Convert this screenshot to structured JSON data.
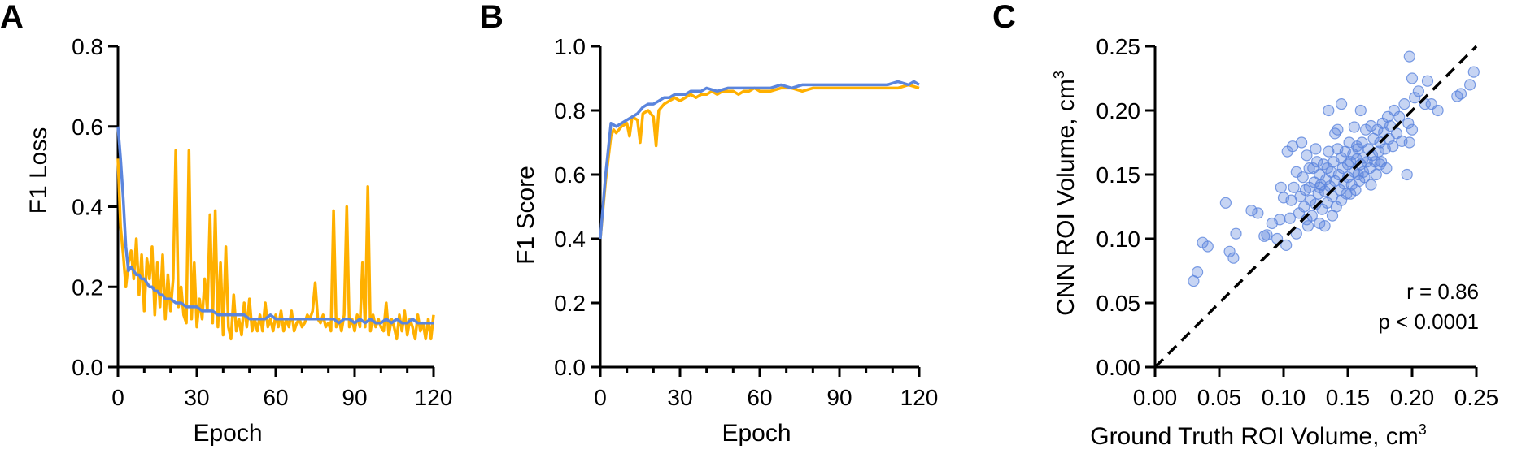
{
  "colors": {
    "validation": "#FFB000",
    "training": "#5B85DD",
    "identity_line": "#000000",
    "scatter_fill": "#5B85DD"
  },
  "chart_data": [
    {
      "panel": "A",
      "type": "line",
      "xlabel": "Epoch",
      "ylabel": "F1 Loss",
      "xlim": [
        0,
        120
      ],
      "ylim": [
        0,
        0.8
      ],
      "xticks": [
        "0",
        "30",
        "60",
        "90",
        "120"
      ],
      "yticks": [
        "0.0",
        "0.2",
        "0.4",
        "0.6",
        "0.8"
      ],
      "grid": false,
      "series": [
        {
          "color": "#FFB000",
          "x": [
            0,
            1,
            2,
            3,
            4,
            5,
            6,
            7,
            8,
            9,
            10,
            11,
            12,
            13,
            14,
            15,
            16,
            17,
            18,
            19,
            20,
            21,
            22,
            23,
            24,
            25,
            26,
            27,
            28,
            29,
            30,
            31,
            32,
            33,
            34,
            35,
            36,
            37,
            38,
            39,
            40,
            41,
            42,
            43,
            44,
            45,
            46,
            47,
            48,
            49,
            50,
            51,
            52,
            53,
            54,
            55,
            56,
            57,
            58,
            59,
            60,
            61,
            62,
            63,
            64,
            65,
            66,
            67,
            68,
            69,
            70,
            71,
            72,
            73,
            74,
            75,
            76,
            77,
            78,
            79,
            80,
            81,
            82,
            83,
            84,
            85,
            86,
            87,
            88,
            89,
            90,
            91,
            92,
            93,
            94,
            95,
            96,
            97,
            98,
            99,
            100,
            101,
            102,
            103,
            104,
            105,
            106,
            107,
            108,
            109,
            110,
            111,
            112,
            113,
            114,
            115,
            116,
            117,
            118,
            119,
            120
          ],
          "values": [
            0.52,
            0.35,
            0.28,
            0.2,
            0.26,
            0.29,
            0.22,
            0.32,
            0.18,
            0.28,
            0.14,
            0.27,
            0.22,
            0.3,
            0.13,
            0.26,
            0.15,
            0.28,
            0.12,
            0.23,
            0.14,
            0.22,
            0.54,
            0.15,
            0.2,
            0.13,
            0.11,
            0.54,
            0.12,
            0.26,
            0.1,
            0.17,
            0.12,
            0.22,
            0.14,
            0.38,
            0.11,
            0.39,
            0.1,
            0.26,
            0.08,
            0.3,
            0.1,
            0.07,
            0.18,
            0.09,
            0.12,
            0.08,
            0.16,
            0.1,
            0.17,
            0.09,
            0.12,
            0.09,
            0.13,
            0.09,
            0.16,
            0.1,
            0.12,
            0.09,
            0.13,
            0.1,
            0.14,
            0.09,
            0.12,
            0.1,
            0.14,
            0.09,
            0.11,
            0.12,
            0.1,
            0.11,
            0.13,
            0.12,
            0.14,
            0.21,
            0.12,
            0.11,
            0.13,
            0.1,
            0.11,
            0.09,
            0.39,
            0.1,
            0.12,
            0.09,
            0.13,
            0.4,
            0.1,
            0.12,
            0.09,
            0.13,
            0.1,
            0.26,
            0.1,
            0.45,
            0.09,
            0.13,
            0.1,
            0.12,
            0.1,
            0.09,
            0.16,
            0.08,
            0.12,
            0.1,
            0.07,
            0.13,
            0.09,
            0.14,
            0.08,
            0.12,
            0.1,
            0.07,
            0.13,
            0.09,
            0.11,
            0.07,
            0.12,
            0.07,
            0.13
          ]
        },
        {
          "color": "#5B85DD",
          "x": [
            0,
            1,
            2,
            3,
            4,
            5,
            6,
            7,
            8,
            9,
            10,
            11,
            12,
            13,
            14,
            15,
            16,
            17,
            18,
            19,
            20,
            22,
            24,
            26,
            28,
            30,
            32,
            34,
            36,
            38,
            40,
            42,
            44,
            46,
            48,
            50,
            52,
            54,
            56,
            58,
            60,
            62,
            64,
            66,
            68,
            70,
            72,
            74,
            76,
            78,
            80,
            82,
            84,
            86,
            88,
            90,
            92,
            94,
            96,
            98,
            100,
            102,
            104,
            106,
            108,
            110,
            112,
            114,
            116,
            118,
            120
          ],
          "values": [
            0.6,
            0.52,
            0.42,
            0.3,
            0.24,
            0.25,
            0.24,
            0.23,
            0.23,
            0.22,
            0.22,
            0.21,
            0.2,
            0.2,
            0.19,
            0.19,
            0.18,
            0.18,
            0.17,
            0.17,
            0.17,
            0.16,
            0.16,
            0.15,
            0.15,
            0.15,
            0.14,
            0.14,
            0.14,
            0.13,
            0.13,
            0.13,
            0.13,
            0.13,
            0.13,
            0.12,
            0.12,
            0.12,
            0.12,
            0.13,
            0.12,
            0.12,
            0.12,
            0.12,
            0.12,
            0.12,
            0.12,
            0.12,
            0.12,
            0.12,
            0.12,
            0.12,
            0.11,
            0.12,
            0.12,
            0.11,
            0.12,
            0.11,
            0.12,
            0.11,
            0.11,
            0.12,
            0.11,
            0.12,
            0.11,
            0.11,
            0.12,
            0.11,
            0.11,
            0.11,
            0.11
          ]
        }
      ]
    },
    {
      "panel": "B",
      "type": "line",
      "xlabel": "Epoch",
      "ylabel": "F1 Score",
      "xlim": [
        0,
        120
      ],
      "ylim": [
        0,
        1.0
      ],
      "xticks": [
        "0",
        "30",
        "60",
        "90",
        "120"
      ],
      "yticks": [
        "0.0",
        "0.2",
        "0.4",
        "0.6",
        "0.8",
        "1.0"
      ],
      "grid": false,
      "series": [
        {
          "color": "#FFB000",
          "x": [
            0,
            2,
            4,
            5,
            6,
            8,
            10,
            11,
            12,
            14,
            15,
            16,
            18,
            20,
            21,
            22,
            24,
            26,
            28,
            30,
            32,
            34,
            36,
            38,
            40,
            42,
            44,
            46,
            48,
            50,
            52,
            54,
            56,
            58,
            60,
            64,
            68,
            72,
            76,
            80,
            84,
            88,
            92,
            96,
            100,
            104,
            108,
            112,
            116,
            120
          ],
          "values": [
            0.4,
            0.58,
            0.72,
            0.74,
            0.73,
            0.75,
            0.76,
            0.72,
            0.78,
            0.77,
            0.7,
            0.79,
            0.8,
            0.78,
            0.69,
            0.8,
            0.82,
            0.83,
            0.84,
            0.83,
            0.84,
            0.85,
            0.84,
            0.85,
            0.85,
            0.86,
            0.85,
            0.86,
            0.86,
            0.86,
            0.85,
            0.86,
            0.86,
            0.87,
            0.86,
            0.86,
            0.87,
            0.87,
            0.86,
            0.87,
            0.87,
            0.87,
            0.87,
            0.87,
            0.87,
            0.87,
            0.87,
            0.87,
            0.88,
            0.87
          ]
        },
        {
          "color": "#5B85DD",
          "x": [
            0,
            2,
            4,
            6,
            8,
            10,
            12,
            14,
            16,
            18,
            20,
            22,
            24,
            26,
            28,
            30,
            32,
            34,
            36,
            38,
            40,
            44,
            48,
            52,
            56,
            60,
            64,
            68,
            72,
            76,
            80,
            84,
            88,
            92,
            96,
            100,
            104,
            108,
            112,
            116,
            118,
            120
          ],
          "values": [
            0.4,
            0.6,
            0.76,
            0.75,
            0.76,
            0.77,
            0.78,
            0.79,
            0.81,
            0.82,
            0.82,
            0.83,
            0.84,
            0.84,
            0.85,
            0.85,
            0.85,
            0.86,
            0.86,
            0.86,
            0.87,
            0.86,
            0.87,
            0.87,
            0.87,
            0.87,
            0.87,
            0.88,
            0.87,
            0.88,
            0.88,
            0.88,
            0.88,
            0.88,
            0.88,
            0.88,
            0.88,
            0.88,
            0.89,
            0.88,
            0.89,
            0.88
          ]
        }
      ]
    },
    {
      "panel": "C",
      "type": "scatter",
      "xlabel": "Ground Truth ROI Volume, cm³",
      "ylabel": "CNN ROI Volume, cm³",
      "xlim": [
        0,
        0.25
      ],
      "ylim": [
        0,
        0.25
      ],
      "xticks": [
        "0.00",
        "0.05",
        "0.10",
        "0.15",
        "0.20",
        "0.25"
      ],
      "yticks": [
        "0.00",
        "0.05",
        "0.10",
        "0.15",
        "0.20",
        "0.25"
      ],
      "grid": false,
      "reference_line": "identity (dashed)",
      "annotations": [
        "r = 0.86",
        "p < 0.0001"
      ],
      "points": [
        [
          0.03,
          0.067
        ],
        [
          0.033,
          0.074
        ],
        [
          0.037,
          0.097
        ],
        [
          0.041,
          0.094
        ],
        [
          0.055,
          0.128
        ],
        [
          0.058,
          0.09
        ],
        [
          0.061,
          0.085
        ],
        [
          0.063,
          0.104
        ],
        [
          0.075,
          0.122
        ],
        [
          0.08,
          0.12
        ],
        [
          0.085,
          0.102
        ],
        [
          0.087,
          0.103
        ],
        [
          0.091,
          0.112
        ],
        [
          0.095,
          0.1
        ],
        [
          0.097,
          0.115
        ],
        [
          0.098,
          0.14
        ],
        [
          0.1,
          0.132
        ],
        [
          0.102,
          0.095
        ],
        [
          0.103,
          0.168
        ],
        [
          0.105,
          0.116
        ],
        [
          0.106,
          0.13
        ],
        [
          0.107,
          0.172
        ],
        [
          0.11,
          0.104
        ],
        [
          0.11,
          0.152
        ],
        [
          0.112,
          0.12
        ],
        [
          0.113,
          0.133
        ],
        [
          0.114,
          0.175
        ],
        [
          0.115,
          0.148
        ],
        [
          0.116,
          0.125
        ],
        [
          0.117,
          0.138
        ],
        [
          0.118,
          0.165
        ],
        [
          0.119,
          0.11
        ],
        [
          0.12,
          0.14
        ],
        [
          0.121,
          0.13
        ],
        [
          0.122,
          0.118
        ],
        [
          0.123,
          0.155
        ],
        [
          0.124,
          0.144
        ],
        [
          0.125,
          0.127
        ],
        [
          0.126,
          0.16
        ],
        [
          0.127,
          0.135
        ],
        [
          0.128,
          0.15
        ],
        [
          0.128,
          0.112
        ],
        [
          0.129,
          0.142
        ],
        [
          0.13,
          0.123
        ],
        [
          0.131,
          0.158
        ],
        [
          0.132,
          0.137
        ],
        [
          0.133,
          0.146
        ],
        [
          0.134,
          0.128
        ],
        [
          0.135,
          0.168
        ],
        [
          0.135,
          0.2
        ],
        [
          0.136,
          0.141
        ],
        [
          0.137,
          0.152
        ],
        [
          0.138,
          0.133
        ],
        [
          0.139,
          0.16
        ],
        [
          0.14,
          0.145
        ],
        [
          0.14,
          0.182
        ],
        [
          0.141,
          0.125
        ],
        [
          0.142,
          0.17
        ],
        [
          0.143,
          0.15
        ],
        [
          0.144,
          0.138
        ],
        [
          0.145,
          0.163
        ],
        [
          0.145,
          0.205
        ],
        [
          0.146,
          0.155
        ],
        [
          0.147,
          0.143
        ],
        [
          0.148,
          0.168
        ],
        [
          0.149,
          0.135
        ],
        [
          0.15,
          0.158
        ],
        [
          0.15,
          0.148
        ],
        [
          0.151,
          0.175
        ],
        [
          0.152,
          0.16
        ],
        [
          0.153,
          0.142
        ],
        [
          0.154,
          0.166
        ],
        [
          0.155,
          0.152
        ],
        [
          0.155,
          0.187
        ],
        [
          0.156,
          0.138
        ],
        [
          0.157,
          0.162
        ],
        [
          0.158,
          0.17
        ],
        [
          0.158,
          0.15
        ],
        [
          0.159,
          0.145
        ],
        [
          0.16,
          0.158
        ],
        [
          0.161,
          0.175
        ],
        [
          0.162,
          0.163
        ],
        [
          0.163,
          0.148
        ],
        [
          0.164,
          0.185
        ],
        [
          0.165,
          0.16
        ],
        [
          0.166,
          0.17
        ],
        [
          0.167,
          0.155
        ],
        [
          0.168,
          0.142
        ],
        [
          0.169,
          0.165
        ],
        [
          0.17,
          0.178
        ],
        [
          0.171,
          0.16
        ],
        [
          0.172,
          0.15
        ],
        [
          0.173,
          0.185
        ],
        [
          0.174,
          0.168
        ],
        [
          0.175,
          0.175
        ],
        [
          0.176,
          0.16
        ],
        [
          0.177,
          0.19
        ],
        [
          0.178,
          0.183
        ],
        [
          0.179,
          0.17
        ],
        [
          0.18,
          0.155
        ],
        [
          0.181,
          0.195
        ],
        [
          0.182,
          0.178
        ],
        [
          0.183,
          0.188
        ],
        [
          0.185,
          0.172
        ],
        [
          0.186,
          0.2
        ],
        [
          0.188,
          0.182
        ],
        [
          0.19,
          0.195
        ],
        [
          0.192,
          0.176
        ],
        [
          0.194,
          0.205
        ],
        [
          0.196,
          0.15
        ],
        [
          0.197,
          0.19
        ],
        [
          0.198,
          0.175
        ],
        [
          0.2,
          0.185
        ],
        [
          0.202,
          0.21
        ],
        [
          0.205,
          0.215
        ],
        [
          0.198,
          0.242
        ],
        [
          0.21,
          0.205
        ],
        [
          0.215,
          0.205
        ],
        [
          0.22,
          0.2
        ],
        [
          0.235,
          0.211
        ],
        [
          0.238,
          0.213
        ],
        [
          0.245,
          0.22
        ],
        [
          0.248,
          0.23
        ],
        [
          0.2,
          0.225
        ],
        [
          0.212,
          0.223
        ],
        [
          0.12,
          0.155
        ],
        [
          0.108,
          0.14
        ],
        [
          0.125,
          0.17
        ],
        [
          0.142,
          0.185
        ],
        [
          0.16,
          0.2
        ],
        [
          0.168,
          0.188
        ],
        [
          0.118,
          0.115
        ],
        [
          0.132,
          0.11
        ],
        [
          0.152,
          0.135
        ],
        [
          0.175,
          0.158
        ],
        [
          0.145,
          0.13
        ],
        [
          0.138,
          0.118
        ],
        [
          0.157,
          0.172
        ],
        [
          0.162,
          0.152
        ],
        [
          0.134,
          0.155
        ],
        [
          0.128,
          0.14
        ]
      ]
    }
  ],
  "panels": {
    "A": {
      "letter": "A"
    },
    "B": {
      "letter": "B"
    },
    "C": {
      "letter": "C",
      "stat_r": "r = 0.86",
      "stat_p": "p < 0.0001"
    }
  }
}
